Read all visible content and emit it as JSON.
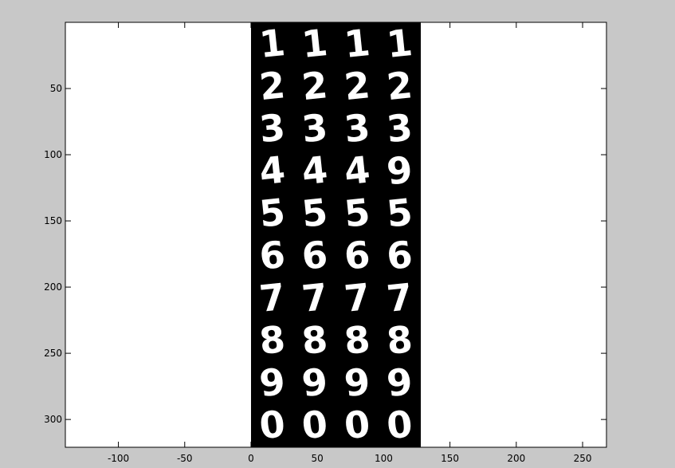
{
  "chart_data": {
    "type": "image",
    "title": "",
    "xlabel": "",
    "ylabel": "",
    "xlim": [
      -140,
      268
    ],
    "ylim": [
      321,
      0
    ],
    "y_reversed": true,
    "grid": false,
    "xticks": [
      -100,
      -50,
      0,
      50,
      100,
      150,
      200,
      250
    ],
    "yticks": [
      50,
      100,
      150,
      200,
      250,
      300
    ],
    "image": {
      "extent_x": [
        0,
        128
      ],
      "extent_y": [
        0,
        321
      ],
      "background": "#000000",
      "foreground": "#ffffff",
      "column_centers_x": [
        16,
        48,
        80,
        112
      ],
      "rows": [
        {
          "center_y": 16,
          "digits": [
            "1",
            "1",
            "1",
            "1"
          ]
        },
        {
          "center_y": 48,
          "digits": [
            "2",
            "2",
            "2",
            "2"
          ]
        },
        {
          "center_y": 80,
          "digits": [
            "3",
            "3",
            "3",
            "3"
          ]
        },
        {
          "center_y": 112,
          "digits": [
            "4",
            "4",
            "4",
            "9"
          ]
        },
        {
          "center_y": 144,
          "digits": [
            "5",
            "5",
            "5",
            "5"
          ]
        },
        {
          "center_y": 176,
          "digits": [
            "6",
            "6",
            "6",
            "6"
          ]
        },
        {
          "center_y": 208,
          "digits": [
            "7",
            "7",
            "7",
            "7"
          ]
        },
        {
          "center_y": 240,
          "digits": [
            "8",
            "8",
            "8",
            "8"
          ]
        },
        {
          "center_y": 272,
          "digits": [
            "9",
            "9",
            "9",
            "9"
          ]
        },
        {
          "center_y": 304,
          "digits": [
            "0",
            "0",
            "0",
            "0"
          ]
        }
      ]
    }
  },
  "colors": {
    "figure_background": "#c8c8c8",
    "axes_background": "#ffffff",
    "axes_edge": "#000000"
  }
}
